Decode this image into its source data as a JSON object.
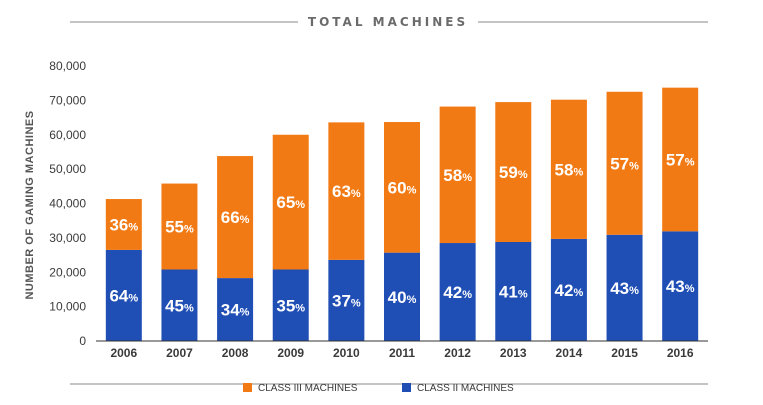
{
  "chart_data": {
    "type": "bar",
    "stacked": true,
    "title": "TOTAL MACHINES",
    "ylabel": "NUMBER OF GAMING MACHINES",
    "xlabel": "",
    "ylim": [
      0,
      80000
    ],
    "yticks": [
      "0",
      "10,000",
      "20,000",
      "30,000",
      "40,000",
      "50,000",
      "60,000",
      "70,000",
      "80,000"
    ],
    "grid": false,
    "legend_position": "bottom",
    "categories": [
      "2006",
      "2007",
      "2008",
      "2009",
      "2010",
      "2011",
      "2012",
      "2013",
      "2014",
      "2015",
      "2016"
    ],
    "series": [
      {
        "name": "CLASS II MACHINES",
        "color": "#1f4eb4",
        "values": [
          26500,
          20800,
          18300,
          20800,
          23600,
          25700,
          28500,
          28800,
          29700,
          30900,
          31900
        ],
        "labels": [
          "64",
          "45",
          "34",
          "35",
          "37",
          "40",
          "42",
          "41",
          "42",
          "43",
          "43"
        ]
      },
      {
        "name": "CLASS III MACHINES",
        "color": "#f27a14",
        "values": [
          14800,
          25000,
          35500,
          39200,
          40000,
          38000,
          39700,
          40700,
          40500,
          41600,
          41800
        ],
        "labels": [
          "36",
          "55",
          "66",
          "65",
          "63",
          "60",
          "58",
          "59",
          "58",
          "57",
          "57"
        ]
      }
    ],
    "value_suffix": "%"
  }
}
